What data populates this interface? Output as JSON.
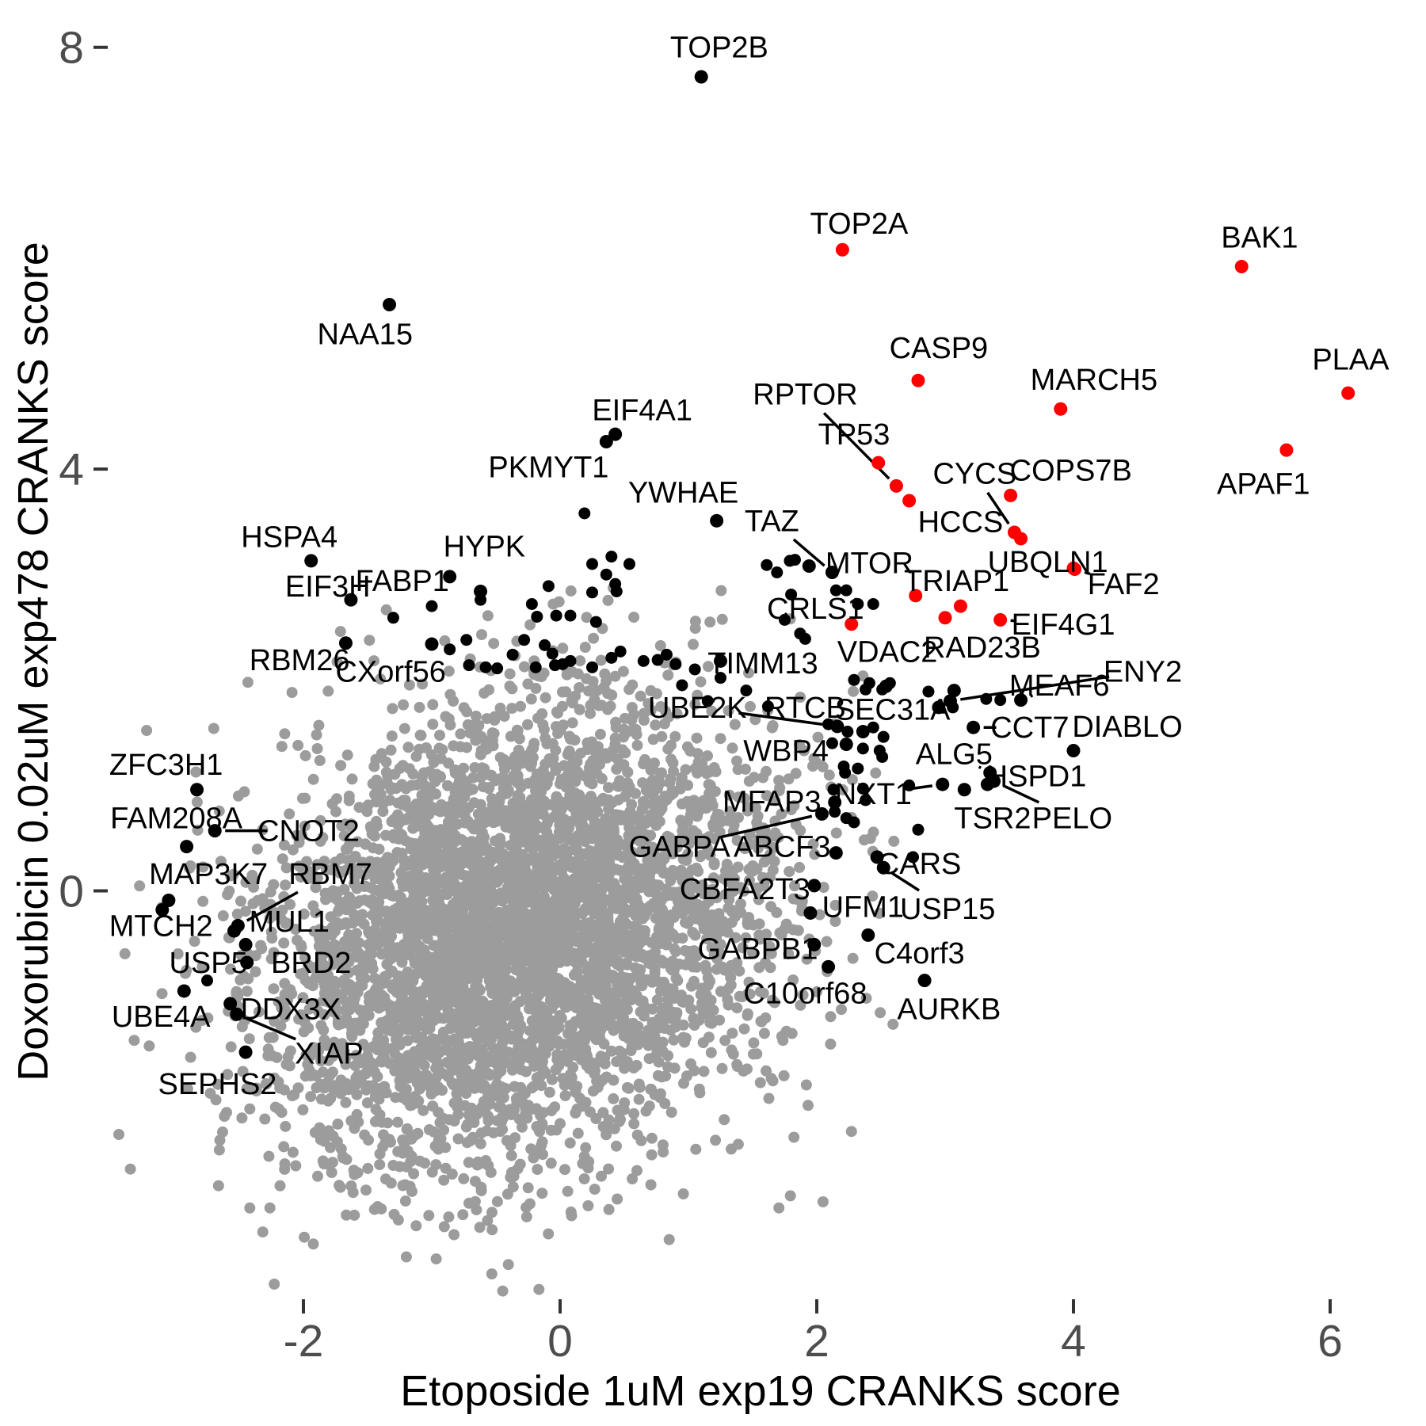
{
  "chart_data": {
    "type": "scatter",
    "title": "",
    "xlabel": "Etoposide 1uM exp19 CRANKS score",
    "ylabel": "Doxorubicin 0.02uM exp478 CRANKS score",
    "x_ticks": [
      -2,
      0,
      2,
      4,
      6
    ],
    "y_ticks": [
      0,
      4,
      8
    ],
    "xlim": [
      -3.6,
      6.7
    ],
    "ylim": [
      -4.3,
      8.3
    ],
    "grid": false,
    "legend": "none",
    "colors": {
      "background_point": "#9c9c9c",
      "highlight_black": "#000000",
      "highlight_red": "#fe0000",
      "tick_label": "#4d4d4d",
      "tick_mark": "#333333",
      "leader_line": "#000000"
    },
    "labeled_points": [
      {
        "name": "TOP2B",
        "x": 1.1,
        "y": 7.72,
        "c": "k",
        "lx": 1.24,
        "ly": 8.0,
        "line": 0
      },
      {
        "name": "TOP2A",
        "x": 2.2,
        "y": 6.08,
        "c": "r",
        "lx": 2.33,
        "ly": 6.33,
        "line": 0
      },
      {
        "name": "BAK1",
        "x": 5.31,
        "y": 5.92,
        "c": "r",
        "lx": 5.45,
        "ly": 6.2,
        "line": 0
      },
      {
        "name": "NAA15",
        "x": -1.33,
        "y": 5.56,
        "c": "k",
        "lx": -1.52,
        "ly": 5.28,
        "line": 0
      },
      {
        "name": "CASP9",
        "x": 2.79,
        "y": 4.84,
        "c": "r",
        "lx": 2.95,
        "ly": 5.15,
        "line": 0
      },
      {
        "name": "MARCH5",
        "x": 3.9,
        "y": 4.57,
        "c": "r",
        "lx": 4.16,
        "ly": 4.85,
        "line": 0
      },
      {
        "name": "PLAA",
        "x": 6.14,
        "y": 4.72,
        "c": "r",
        "lx": 6.16,
        "ly": 5.04,
        "line": 0
      },
      {
        "name": "APAF1",
        "x": 5.66,
        "y": 4.18,
        "c": "r",
        "lx": 5.48,
        "ly": 3.86,
        "line": 0
      },
      {
        "name": "EIF4A1",
        "x": 0.43,
        "y": 4.33,
        "c": "k",
        "lx": 0.64,
        "ly": 4.56,
        "line": 0
      },
      {
        "name": "PKMYT1",
        "x": 0.36,
        "y": 4.26,
        "c": "k",
        "lx": -0.09,
        "ly": 4.02,
        "line": 0
      },
      {
        "name": "YWHAE",
        "x": 1.22,
        "y": 3.51,
        "c": "k",
        "lx": 0.96,
        "ly": 3.78,
        "line": 0
      },
      {
        "name": "RPTOR",
        "x": 2.62,
        "y": 3.84,
        "c": "r",
        "lx": 1.91,
        "ly": 4.71,
        "line": 1
      },
      {
        "name": "TP53",
        "x": 2.48,
        "y": 4.06,
        "c": "r",
        "lx": 2.29,
        "ly": 4.33,
        "line": 0
      },
      {
        "name": "CYCS",
        "x": 3.54,
        "y": 3.4,
        "c": "r",
        "lx": 3.23,
        "ly": 3.96,
        "line": 1
      },
      {
        "name": "COPS7B",
        "x": 3.51,
        "y": 3.75,
        "c": "r",
        "lx": 3.98,
        "ly": 3.99,
        "line": 0
      },
      {
        "name": "HCCS",
        "x": 3.59,
        "y": 3.34,
        "c": "r",
        "lx": 3.12,
        "ly": 3.5,
        "line": 0
      },
      {
        "name": "UBQLN1",
        "x": 4.0,
        "y": 3.06,
        "c": "r",
        "lx": 3.8,
        "ly": 3.12,
        "line": 0
      },
      {
        "name": "FAF2",
        "x": 4.01,
        "y": 3.05,
        "c": "r",
        "lx": 4.39,
        "ly": 2.91,
        "line": 1
      },
      {
        "name": "TRIAP1",
        "x": 3.12,
        "y": 2.7,
        "c": "r",
        "lx": 3.09,
        "ly": 2.94,
        "line": 0
      },
      {
        "name": "CRLS1",
        "x": 2.27,
        "y": 2.53,
        "c": "r",
        "lx": 1.99,
        "ly": 2.68,
        "line": 0
      },
      {
        "name": "EIF4G1",
        "x": 3.43,
        "y": 2.57,
        "c": "r",
        "lx": 3.92,
        "ly": 2.53,
        "line": 1
      },
      {
        "name": "TAZ",
        "x": 2.12,
        "y": 3.02,
        "c": "k",
        "lx": 1.65,
        "ly": 3.51,
        "line": 1
      },
      {
        "name": "MTOR",
        "x": 1.94,
        "y": 3.08,
        "c": "k",
        "lx": 2.41,
        "ly": 3.11,
        "line": 0
      },
      {
        "name": "HSPA4",
        "x": -1.94,
        "y": 3.13,
        "c": "k",
        "lx": -2.11,
        "ly": 3.36,
        "line": 0
      },
      {
        "name": "EIF3H",
        "x": -1.63,
        "y": 2.76,
        "c": "k",
        "lx": -1.81,
        "ly": 2.89,
        "line": 0
      },
      {
        "name": "FABP1",
        "x": -0.86,
        "y": 2.98,
        "c": "k",
        "lx": -1.23,
        "ly": 2.94,
        "line": 0
      },
      {
        "name": "HYPK",
        "x": -0.62,
        "y": 2.84,
        "c": "k",
        "lx": -0.59,
        "ly": 3.27,
        "line": 0
      },
      {
        "name": "RBM26",
        "x": -1.67,
        "y": 2.35,
        "c": "k",
        "lx": -2.03,
        "ly": 2.19,
        "line": 0
      },
      {
        "name": "CXorf56",
        "x": -1.0,
        "y": 2.34,
        "c": "k",
        "lx": -1.32,
        "ly": 2.08,
        "line": 0
      },
      {
        "name": "TIMM13",
        "x": 1.25,
        "y": 2.18,
        "c": "k",
        "lx": 1.58,
        "ly": 2.16,
        "line": 0
      },
      {
        "name": "VDAC2",
        "x": 2.54,
        "y": 1.94,
        "c": "k",
        "lx": 2.55,
        "ly": 2.27,
        "line": 0
      },
      {
        "name": "RAD23B",
        "x": 3.07,
        "y": 1.9,
        "c": "k",
        "lx": 3.29,
        "ly": 2.31,
        "line": 0
      },
      {
        "name": "ENY2",
        "x": 3.04,
        "y": 1.8,
        "c": "k",
        "lx": 4.54,
        "ly": 2.08,
        "line": 1
      },
      {
        "name": "MEAF6",
        "x": 3.59,
        "y": 1.81,
        "c": "k",
        "lx": 3.89,
        "ly": 1.95,
        "line": 1
      },
      {
        "name": "SEC31A",
        "x": 2.95,
        "y": 1.74,
        "c": "k",
        "lx": 2.59,
        "ly": 1.72,
        "line": 0
      },
      {
        "name": "UBE2K",
        "x": 2.16,
        "y": 1.56,
        "c": "k",
        "lx": 1.07,
        "ly": 1.74,
        "line": 1
      },
      {
        "name": "RTCB",
        "x": 2.36,
        "y": 1.51,
        "c": "k",
        "lx": 1.91,
        "ly": 1.74,
        "line": 0
      },
      {
        "name": "CCT7",
        "x": 3.22,
        "y": 1.55,
        "c": "k",
        "lx": 3.66,
        "ly": 1.55,
        "line": 1
      },
      {
        "name": "DIABLO",
        "x": 4.0,
        "y": 1.33,
        "c": "k",
        "lx": 4.42,
        "ly": 1.56,
        "line": 0
      },
      {
        "name": "WBP4",
        "x": 2.23,
        "y": 1.39,
        "c": "k",
        "lx": 1.76,
        "ly": 1.33,
        "line": 0
      },
      {
        "name": "ALG5",
        "x": 3.35,
        "y": 1.12,
        "c": "k",
        "lx": 3.07,
        "ly": 1.3,
        "line": 1
      },
      {
        "name": "HSPD1",
        "x": 3.33,
        "y": 1.01,
        "c": "k",
        "lx": 3.71,
        "ly": 1.09,
        "line": 0
      },
      {
        "name": "NXT1",
        "x": 2.98,
        "y": 1.01,
        "c": "k",
        "lx": 2.44,
        "ly": 0.92,
        "line": 1
      },
      {
        "name": "TSR2",
        "x": 3.15,
        "y": 0.96,
        "c": "k",
        "lx": 3.37,
        "ly": 0.69,
        "line": 0
      },
      {
        "name": "PELO",
        "x": 3.38,
        "y": 1.04,
        "c": "k",
        "lx": 3.99,
        "ly": 0.69,
        "line": 1
      },
      {
        "name": "MFAP3",
        "x": 2.14,
        "y": 0.84,
        "c": "k",
        "lx": 1.65,
        "ly": 0.85,
        "line": 0
      },
      {
        "name": "GABPA",
        "x": 2.04,
        "y": 0.73,
        "c": "k",
        "lx": 0.93,
        "ly": 0.42,
        "line": 1
      },
      {
        "name": "ABCF3",
        "x": 2.15,
        "y": 0.36,
        "c": "k",
        "lx": 1.73,
        "ly": 0.42,
        "line": 0
      },
      {
        "name": "CARS",
        "x": 2.47,
        "y": 0.32,
        "c": "k",
        "lx": 2.8,
        "ly": 0.26,
        "line": 0
      },
      {
        "name": "USP15",
        "x": 2.52,
        "y": 0.22,
        "c": "k",
        "lx": 3.02,
        "ly": -0.17,
        "line": 1
      },
      {
        "name": "UFM1",
        "x": 1.95,
        "y": -0.21,
        "c": "k",
        "lx": 2.36,
        "ly": -0.15,
        "line": 0
      },
      {
        "name": "CBFA2T3",
        "x": 1.98,
        "y": 0.05,
        "c": "k",
        "lx": 1.44,
        "ly": 0.02,
        "line": 0
      },
      {
        "name": "GABPB1",
        "x": 1.98,
        "y": -0.51,
        "c": "k",
        "lx": 1.54,
        "ly": -0.55,
        "line": 0
      },
      {
        "name": "C4orf3",
        "x": 2.4,
        "y": -0.42,
        "c": "k",
        "lx": 2.8,
        "ly": -0.59,
        "line": 0
      },
      {
        "name": "C10orf68",
        "x": 2.09,
        "y": -0.72,
        "c": "k",
        "lx": 1.91,
        "ly": -0.97,
        "line": 0
      },
      {
        "name": "AURKB",
        "x": 2.84,
        "y": -0.85,
        "c": "k",
        "lx": 3.03,
        "ly": -1.12,
        "line": 0
      },
      {
        "name": "ZFC3H1",
        "x": -2.83,
        "y": 0.96,
        "c": "k",
        "lx": -3.07,
        "ly": 1.2,
        "line": 0
      },
      {
        "name": "FAM208A",
        "x": -2.91,
        "y": 0.42,
        "c": "k",
        "lx": -2.99,
        "ly": 0.69,
        "line": 0
      },
      {
        "name": "CNOT2",
        "x": -2.69,
        "y": 0.57,
        "c": "k",
        "lx": -1.96,
        "ly": 0.57,
        "line": 1
      },
      {
        "name": "MAP3K7",
        "x": -3.05,
        "y": -0.09,
        "c": "k",
        "lx": -2.74,
        "ly": 0.16,
        "line": 0
      },
      {
        "name": "MTCH2",
        "x": -3.1,
        "y": -0.18,
        "c": "k",
        "lx": -3.11,
        "ly": -0.33,
        "line": 0
      },
      {
        "name": "RBM7",
        "x": -2.51,
        "y": -0.33,
        "c": "k",
        "lx": -1.79,
        "ly": 0.16,
        "line": 1
      },
      {
        "name": "MUL1",
        "x": -2.54,
        "y": -0.38,
        "c": "k",
        "lx": -2.11,
        "ly": -0.29,
        "line": 0
      },
      {
        "name": "USP5",
        "x": -2.44,
        "y": -0.68,
        "c": "k",
        "lx": -2.74,
        "ly": -0.68,
        "line": 0
      },
      {
        "name": "BRD2",
        "x": -2.45,
        "y": -0.51,
        "c": "k",
        "lx": -1.94,
        "ly": -0.68,
        "line": 0
      },
      {
        "name": "UBE4A",
        "x": -2.93,
        "y": -0.95,
        "c": "k",
        "lx": -3.11,
        "ly": -1.19,
        "line": 0
      },
      {
        "name": "DDX3X",
        "x": -2.57,
        "y": -1.07,
        "c": "k",
        "lx": -2.1,
        "ly": -1.12,
        "line": 0
      },
      {
        "name": "XIAP",
        "x": -2.52,
        "y": -1.17,
        "c": "k",
        "lx": -1.8,
        "ly": -1.54,
        "line": 1
      },
      {
        "name": "SEPHS2",
        "x": -2.45,
        "y": -1.53,
        "c": "k",
        "lx": -2.67,
        "ly": -1.83,
        "line": 0
      }
    ],
    "extra_points": {
      "red": [
        [
          2.72,
          3.7
        ],
        [
          2.77,
          2.8
        ],
        [
          3.0,
          2.59
        ]
      ],
      "black": [
        [
          1.61,
          3.09
        ],
        [
          1.69,
          3.02
        ],
        [
          1.83,
          3.14
        ],
        [
          1.79,
          3.13
        ],
        [
          2.15,
          2.85
        ],
        [
          2.32,
          2.72
        ],
        [
          1.8,
          2.81
        ],
        [
          1.75,
          2.57
        ],
        [
          1.87,
          2.44
        ],
        [
          1.91,
          2.39
        ],
        [
          2.23,
          2.85
        ],
        [
          2.44,
          2.72
        ],
        [
          2.41,
          1.97
        ],
        [
          2.38,
          1.91
        ],
        [
          2.87,
          1.89
        ],
        [
          3.32,
          1.82
        ],
        [
          2.29,
          2.0
        ],
        [
          2.51,
          1.91
        ],
        [
          2.57,
          1.97
        ],
        [
          2.09,
          1.58
        ],
        [
          2.24,
          1.51
        ],
        [
          2.44,
          1.55
        ],
        [
          2.52,
          1.46
        ],
        [
          2.12,
          1.4
        ],
        [
          2.36,
          1.35
        ],
        [
          2.51,
          1.27
        ],
        [
          2.21,
          1.18
        ],
        [
          2.49,
          1.33
        ],
        [
          2.32,
          1.16
        ],
        [
          2.22,
          1.12
        ],
        [
          2.36,
          0.97
        ],
        [
          2.38,
          0.86
        ],
        [
          2.23,
          0.69
        ],
        [
          2.29,
          0.65
        ],
        [
          2.75,
          0.32
        ],
        [
          2.79,
          0.58
        ],
        [
          0.19,
          3.58
        ],
        [
          0.25,
          3.1
        ],
        [
          0.4,
          3.17
        ],
        [
          0.54,
          3.1
        ],
        [
          0.36,
          3.0
        ],
        [
          0.43,
          2.91
        ],
        [
          0.44,
          2.84
        ],
        [
          0.25,
          2.83
        ],
        [
          -0.09,
          2.89
        ],
        [
          -0.22,
          2.72
        ],
        [
          -0.18,
          2.6
        ],
        [
          -0.03,
          2.61
        ],
        [
          0.08,
          2.61
        ],
        [
          0.28,
          2.55
        ],
        [
          -1.0,
          2.7
        ],
        [
          -1.3,
          2.59
        ],
        [
          -0.86,
          2.29
        ],
        [
          -0.73,
          2.38
        ],
        [
          -0.28,
          2.38
        ],
        [
          -0.37,
          2.24
        ],
        [
          -0.12,
          2.33
        ],
        [
          -0.06,
          2.25
        ],
        [
          -0.71,
          2.14
        ],
        [
          -0.58,
          2.12
        ],
        [
          -0.49,
          2.11
        ],
        [
          -0.19,
          2.12
        ],
        [
          0.02,
          2.15
        ],
        [
          -0.04,
          2.14
        ],
        [
          0.08,
          2.18
        ],
        [
          0.25,
          2.12
        ],
        [
          0.4,
          2.21
        ],
        [
          0.47,
          2.27
        ],
        [
          0.65,
          2.18
        ],
        [
          0.76,
          2.19
        ],
        [
          0.83,
          2.24
        ],
        [
          0.9,
          2.15
        ],
        [
          2.13,
          0.96
        ],
        [
          2.14,
          0.75
        ],
        [
          2.72,
          1.0
        ],
        [
          3.43,
          1.81
        ],
        [
          3.06,
          1.74
        ],
        [
          -2.75,
          -0.85
        ],
        [
          -0.62,
          2.76
        ],
        [
          1.05,
          2.1
        ],
        [
          1.25,
          2.02
        ],
        [
          1.45,
          1.9
        ],
        [
          1.62,
          1.75
        ],
        [
          0.95,
          1.95
        ],
        [
          1.15,
          1.8
        ]
      ]
    },
    "background_cloud": {
      "count": 4500,
      "center": [
        -0.35,
        -0.4
      ],
      "sd": [
        1.0,
        1.1
      ],
      "corr": 0.22,
      "seed": 42,
      "clip": {
        "xmax": 2.9,
        "xmin": -3.45,
        "ymax": 2.9,
        "ymin": -3.95
      }
    }
  }
}
